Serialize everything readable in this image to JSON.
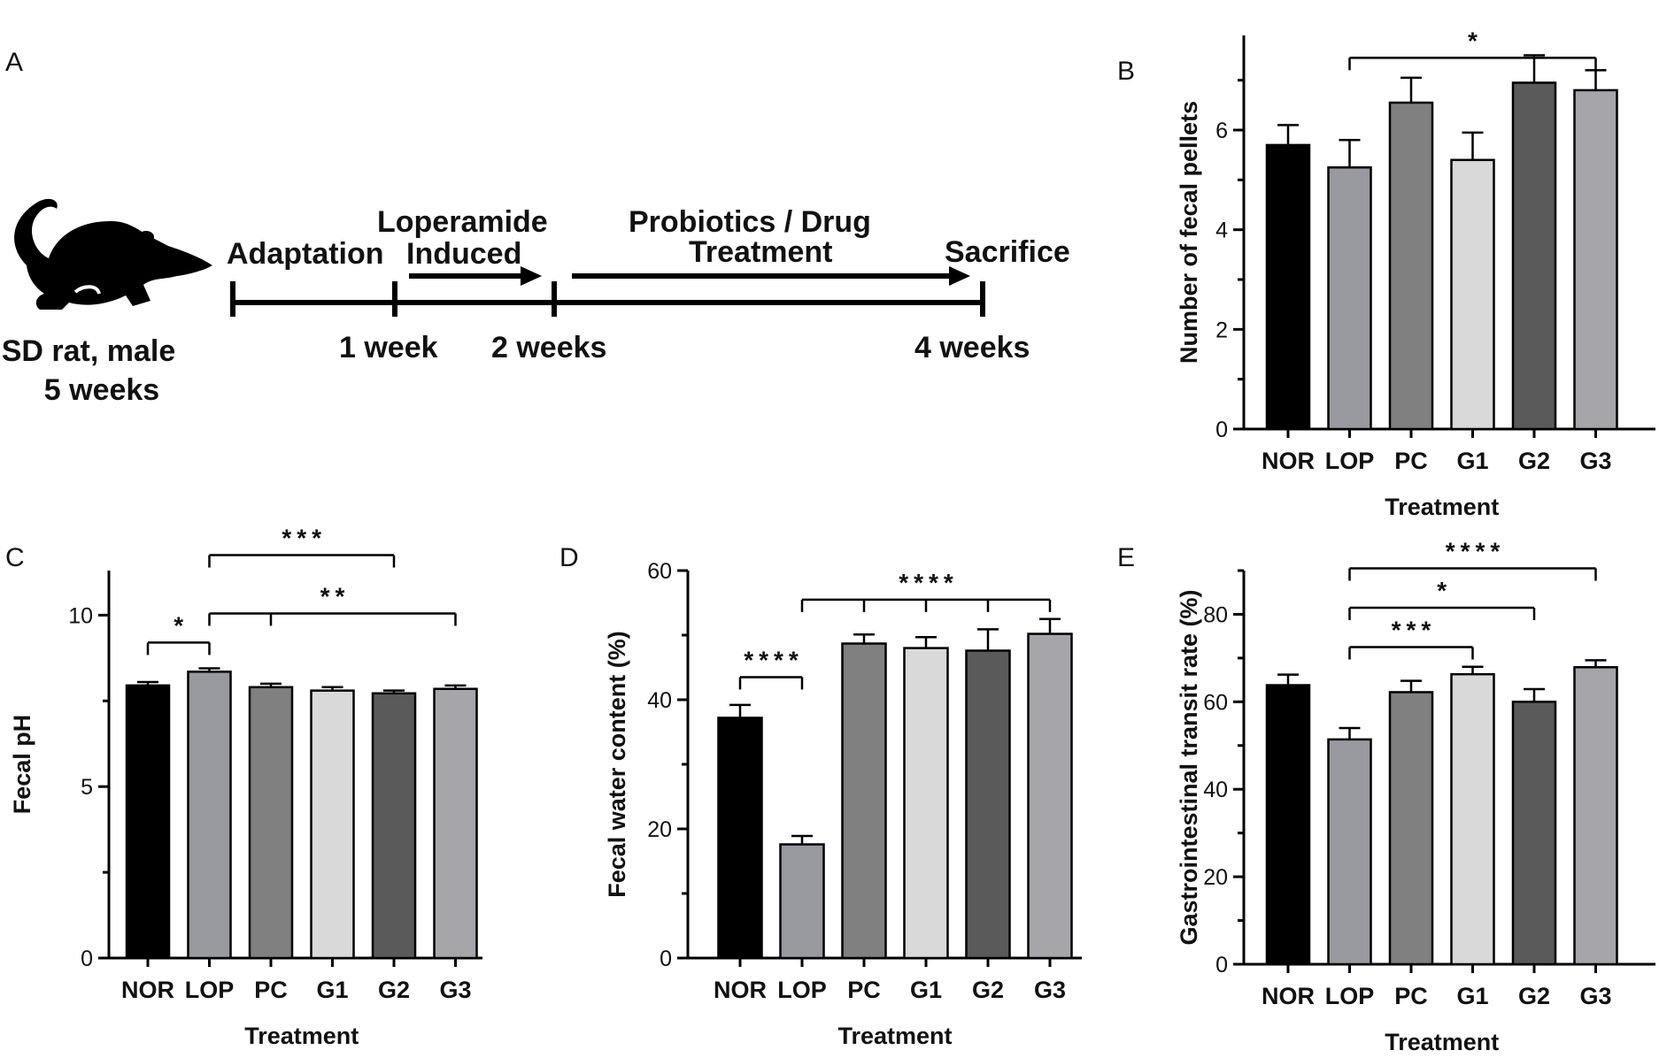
{
  "panel_labels": {
    "a": "A",
    "b": "B",
    "c": "C",
    "d": "D",
    "e": "E"
  },
  "timeline": {
    "subject_line1": "SD rat, male",
    "subject_line2": "5 weeks",
    "adaptation": "Adaptation",
    "loperamide": "Loperamide",
    "induced": "Induced",
    "probiotics": "Probiotics / Drug",
    "treatment": "Treatment",
    "sacrifice": "Sacrifice",
    "week1": "1 week",
    "week2": "2 weeks",
    "week4": "4 weeks",
    "loperamide_color": "#ee1111",
    "probiotics_color": "#1a1aee",
    "icon": "rat-icon"
  },
  "chart_data": [
    {
      "id": "B",
      "type": "bar",
      "categories": [
        "NOR",
        "LOP",
        "PC",
        "G1",
        "G2",
        "G3"
      ],
      "values": [
        5.7,
        5.25,
        6.55,
        5.4,
        6.95,
        6.8
      ],
      "errors": [
        0.4,
        0.55,
        0.5,
        0.55,
        0.55,
        0.4
      ],
      "colors": [
        "#000000",
        "#999aa0",
        "#808080",
        "#d9d9d9",
        "#5a5a5a",
        "#a6a6aa"
      ],
      "xlabel": "Treatment",
      "ylabel": "Number of fecal pellets",
      "ylim": [
        0,
        7.9
      ],
      "yticks": [
        0,
        2,
        4,
        6
      ],
      "significance": [
        {
          "label": "*",
          "from": "LOP",
          "to": [
            "G3"
          ],
          "at": 7.45
        }
      ]
    },
    {
      "id": "C",
      "type": "bar",
      "categories": [
        "NOR",
        "LOP",
        "PC",
        "G1",
        "G2",
        "G3"
      ],
      "values": [
        7.95,
        8.35,
        7.9,
        7.8,
        7.72,
        7.85
      ],
      "errors": [
        0.1,
        0.1,
        0.1,
        0.1,
        0.08,
        0.1
      ],
      "colors": [
        "#000000",
        "#999aa0",
        "#808080",
        "#d9d9d9",
        "#5a5a5a",
        "#a6a6aa"
      ],
      "xlabel": "Treatment",
      "ylabel": "Fecal pH",
      "ylim": [
        0,
        11.3
      ],
      "yticks": [
        0,
        5,
        10
      ],
      "significance": [
        {
          "label": "*",
          "from": "NOR",
          "to": [
            "LOP"
          ],
          "at": 9.2
        },
        {
          "label": "**",
          "from": "LOP",
          "to": [
            "PC",
            "G3"
          ],
          "at": 10.05
        },
        {
          "label": "***",
          "from": "LOP",
          "to": [
            "G2"
          ],
          "at": 11.75
        }
      ]
    },
    {
      "id": "D",
      "type": "bar",
      "categories": [
        "NOR",
        "LOP",
        "PC",
        "G1",
        "G2",
        "G3"
      ],
      "values": [
        37.2,
        17.6,
        48.7,
        48.0,
        47.6,
        50.2
      ],
      "errors": [
        2.0,
        1.3,
        1.4,
        1.7,
        3.3,
        2.3
      ],
      "colors": [
        "#000000",
        "#999aa0",
        "#808080",
        "#d9d9d9",
        "#5a5a5a",
        "#a6a6aa"
      ],
      "xlabel": "Treatment",
      "ylabel": "Fecal water content (%)",
      "ylim": [
        0,
        60
      ],
      "yticks": [
        0,
        20,
        40,
        60
      ],
      "significance": [
        {
          "label": "****",
          "from": "NOR",
          "to": [
            "LOP"
          ],
          "at": 43.5
        },
        {
          "label": "****",
          "from": "LOP",
          "to": [
            "PC",
            "G1",
            "G2",
            "G3"
          ],
          "at": 55.5
        }
      ]
    },
    {
      "id": "E",
      "type": "bar",
      "categories": [
        "NOR",
        "LOP",
        "PC",
        "G1",
        "G2",
        "G3"
      ],
      "values": [
        63.8,
        51.4,
        62.2,
        66.3,
        60.0,
        67.9
      ],
      "errors": [
        2.4,
        2.6,
        2.6,
        1.7,
        2.9,
        1.6
      ],
      "colors": [
        "#000000",
        "#999aa0",
        "#808080",
        "#d9d9d9",
        "#5a5a5a",
        "#a6a6aa"
      ],
      "xlabel": "Treatment",
      "ylabel": "Gastrointestinal transit rate (%)",
      "ylim": [
        0,
        90
      ],
      "yticks": [
        0,
        20,
        40,
        60,
        80
      ],
      "significance": [
        {
          "label": "***",
          "from": "LOP",
          "to": [
            "G1"
          ],
          "at": 72.5
        },
        {
          "label": "*",
          "from": "LOP",
          "to": [
            "G2"
          ],
          "at": 81.5
        },
        {
          "label": "****",
          "from": "LOP",
          "to": [
            "G3"
          ],
          "at": 90.5
        }
      ]
    }
  ]
}
